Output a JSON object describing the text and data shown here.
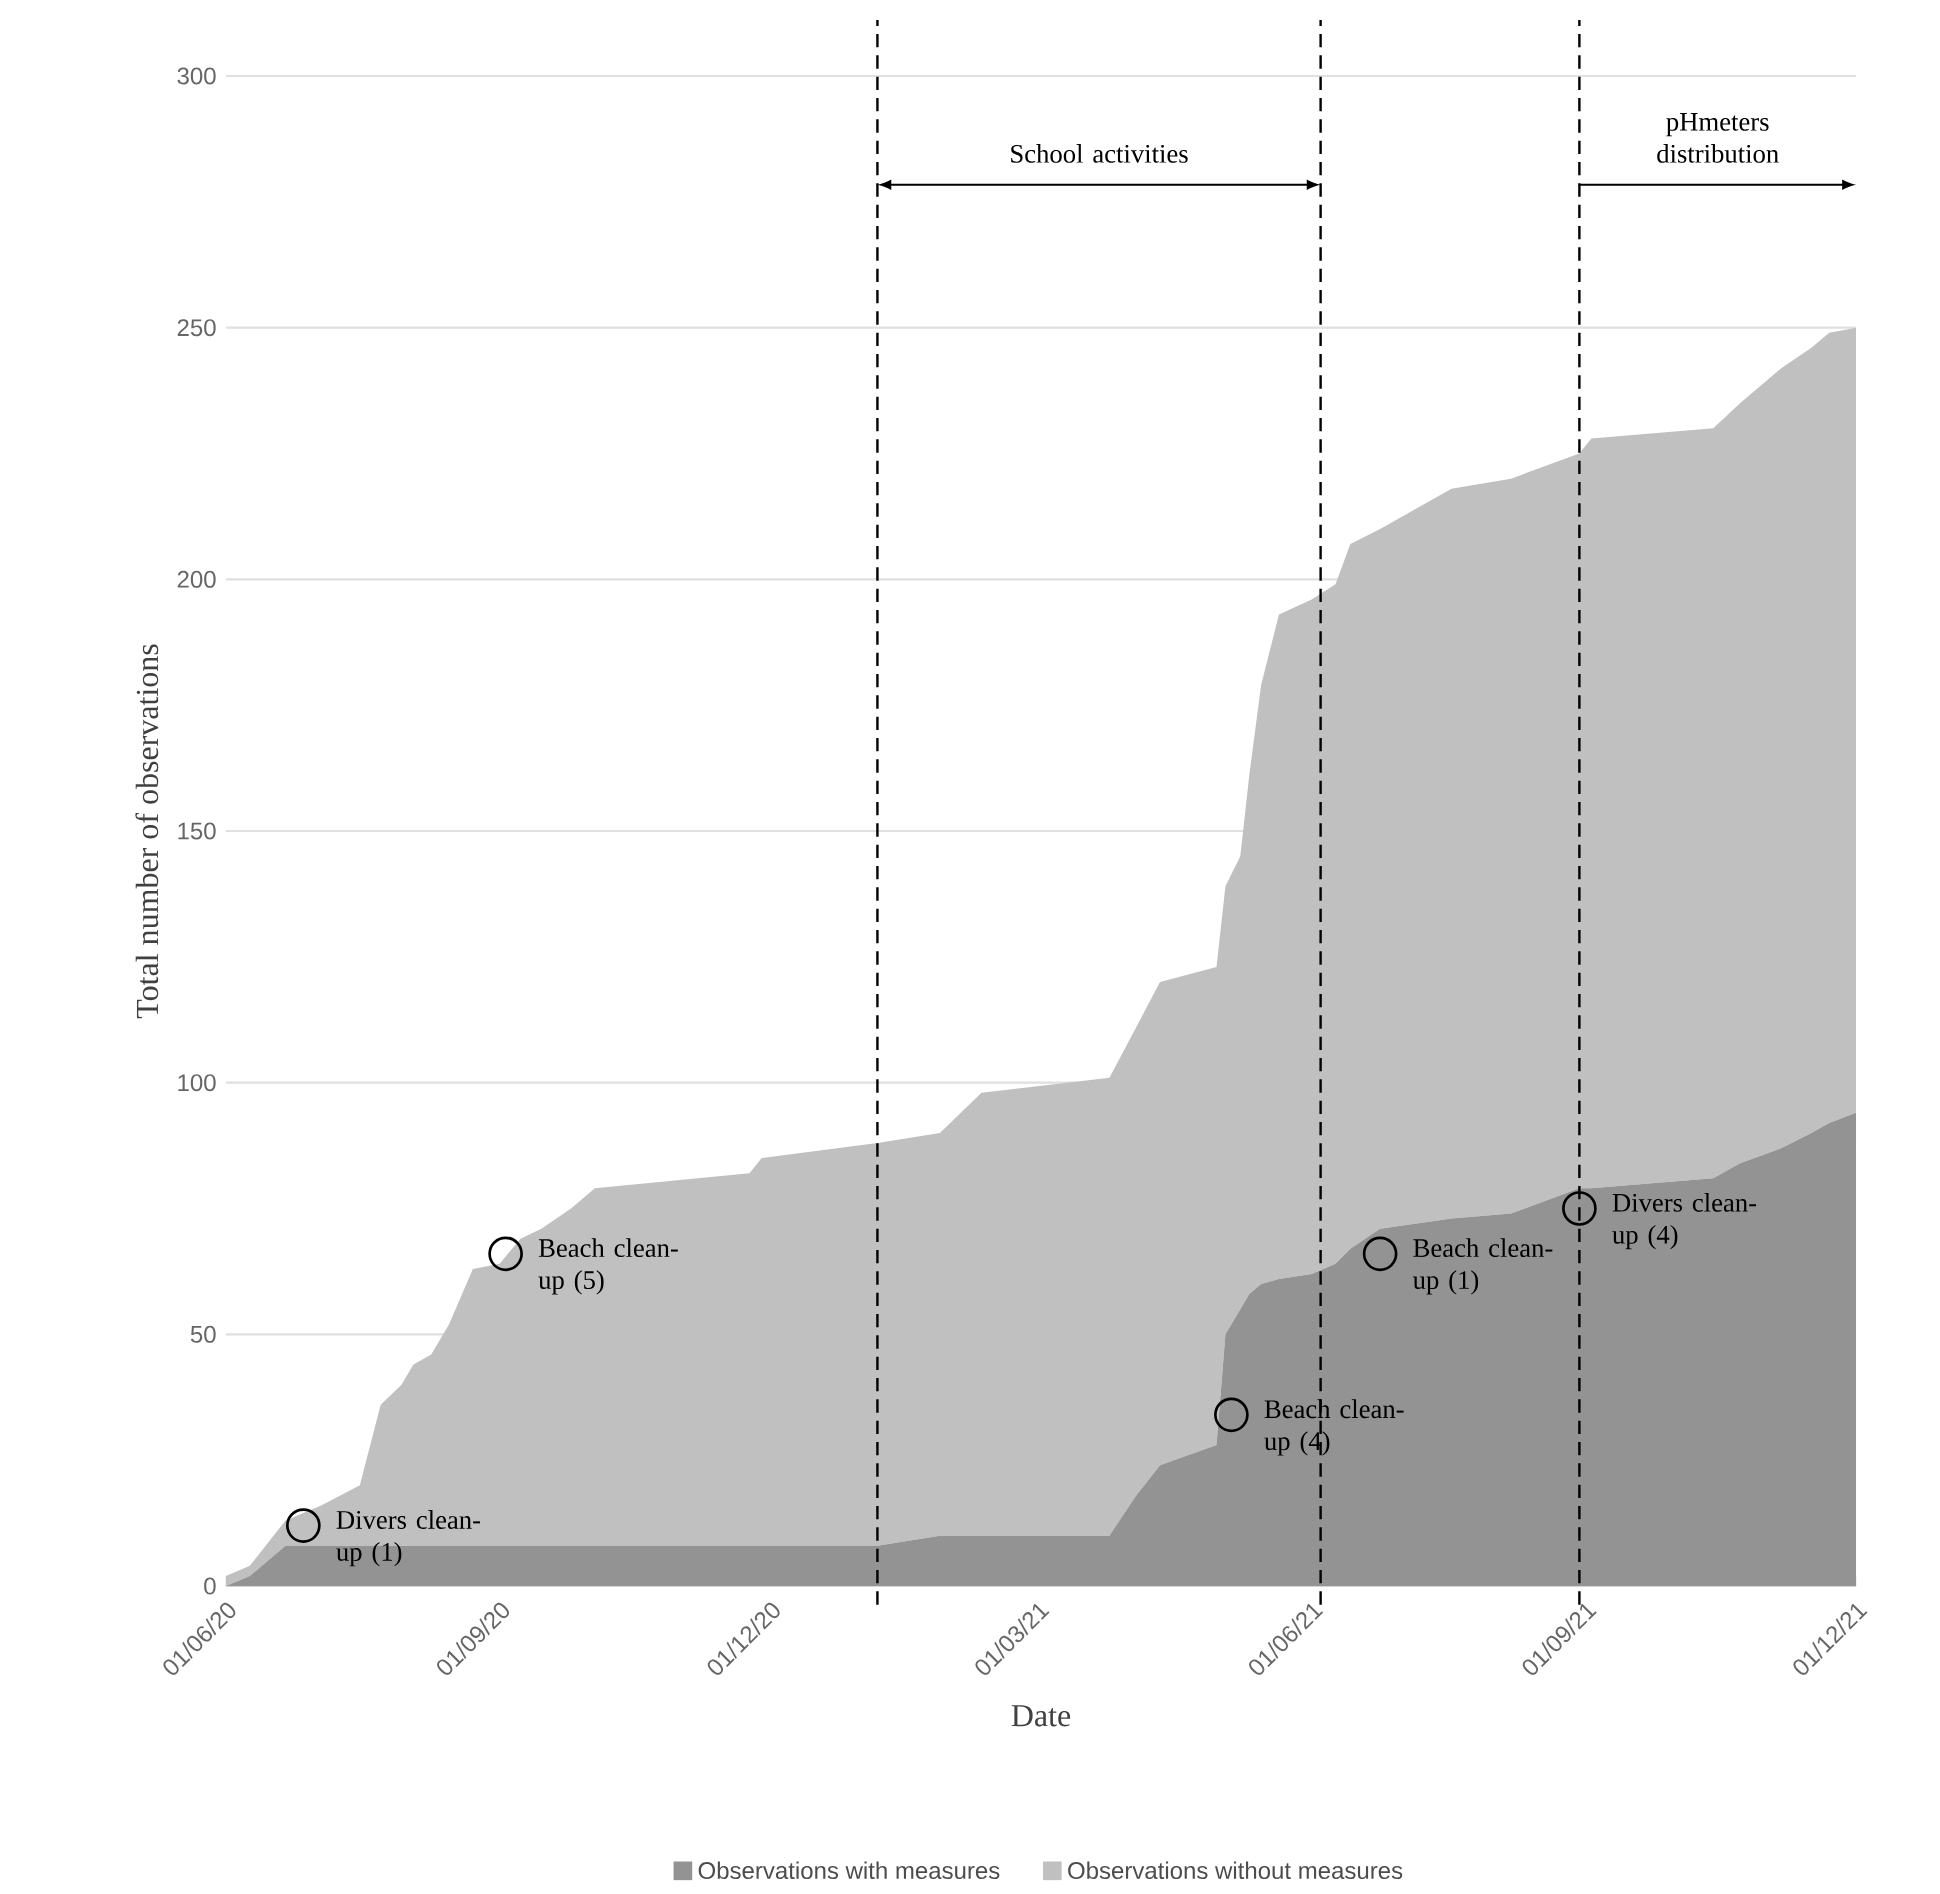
{
  "chart_data": {
    "type": "area",
    "stacked": true,
    "xlabel": "Date",
    "ylabel": "Total number of observations",
    "x": [
      "2020-06-01",
      "2020-06-09",
      "2020-06-21",
      "2020-07-03",
      "2020-07-16",
      "2020-07-23",
      "2020-07-30",
      "2020-08-03",
      "2020-08-09",
      "2020-08-15",
      "2020-08-23",
      "2020-09-01",
      "2020-09-08",
      "2020-09-15",
      "2020-09-25",
      "2020-10-03",
      "2020-11-24",
      "2020-11-28",
      "2021-01-06",
      "2021-01-27",
      "2021-02-10",
      "2021-03-25",
      "2021-04-03",
      "2021-04-11",
      "2021-04-30",
      "2021-05-03",
      "2021-05-08",
      "2021-05-11",
      "2021-05-15",
      "2021-05-21",
      "2021-06-01",
      "2021-06-09",
      "2021-06-14",
      "2021-06-24",
      "2021-07-18",
      "2021-08-07",
      "2021-08-30",
      "2021-09-03",
      "2021-10-14",
      "2021-10-23",
      "2021-11-06",
      "2021-11-16",
      "2021-11-22",
      "2021-12-01"
    ],
    "series": [
      {
        "name": "Observations with measures",
        "color": "#939393",
        "values": [
          0,
          2,
          8,
          8,
          8,
          8,
          8,
          8,
          8,
          8,
          8,
          8,
          8,
          8,
          8,
          8,
          8,
          8,
          8,
          10,
          10,
          10,
          18,
          24,
          28,
          50,
          55,
          58,
          60,
          61,
          62,
          64,
          67,
          71,
          73,
          74,
          79,
          79,
          81,
          84,
          87,
          90,
          92,
          94
        ]
      },
      {
        "name": "Observations without measures",
        "color": "#c0c0c0",
        "values": [
          2,
          2,
          5,
          8,
          12,
          28,
          32,
          36,
          38,
          44,
          55,
          56,
          61,
          63,
          67,
          71,
          74,
          77,
          80,
          80,
          88,
          91,
          93,
          96,
          95,
          89,
          90,
          103,
          119,
          132,
          134,
          135,
          140,
          139,
          145,
          146,
          146,
          149,
          149,
          151,
          155,
          156,
          157,
          156
        ]
      }
    ],
    "xlim": [
      "2020-06-01",
      "2021-12-01"
    ],
    "xticks": [
      {
        "value": "2020-06-01",
        "label": "01/06/20"
      },
      {
        "value": "2020-09-01",
        "label": "01/09/20"
      },
      {
        "value": "2020-12-01",
        "label": "01/12/20"
      },
      {
        "value": "2021-03-01",
        "label": "01/03/21"
      },
      {
        "value": "2021-06-01",
        "label": "01/06/21"
      },
      {
        "value": "2021-09-01",
        "label": "01/09/21"
      },
      {
        "value": "2021-12-01",
        "label": "01/12/21"
      }
    ],
    "ylim": [
      0,
      300
    ],
    "yticks": [
      0,
      50,
      100,
      150,
      200,
      250,
      300
    ],
    "grid": "y",
    "legend": "bottom",
    "ref_lines": [
      {
        "axis": "x",
        "value": "2021-01-06",
        "color": "#000000",
        "line_style": "dashed"
      },
      {
        "axis": "x",
        "value": "2021-06-04",
        "color": "#000000",
        "line_style": "dashed"
      },
      {
        "axis": "x",
        "value": "2021-08-30",
        "color": "#000000",
        "line_style": "dashed"
      }
    ],
    "annotations": [
      "School activities",
      "pHmeters distribution",
      {
        "text": "Divers clean-up (1)",
        "x": "2020-06-27",
        "y": 12
      },
      {
        "text": "Beach clean-up (5)",
        "x": "2020-09-03",
        "y": 66
      },
      {
        "text": "Beach clean-up (4)",
        "x": "2021-05-05",
        "y": 34
      },
      {
        "text": "Beach clean-up (1)",
        "x": "2021-06-24",
        "y": 66
      },
      {
        "text": "Divers clean-up (4)",
        "x": "2021-08-30",
        "y": 75
      }
    ]
  }
}
